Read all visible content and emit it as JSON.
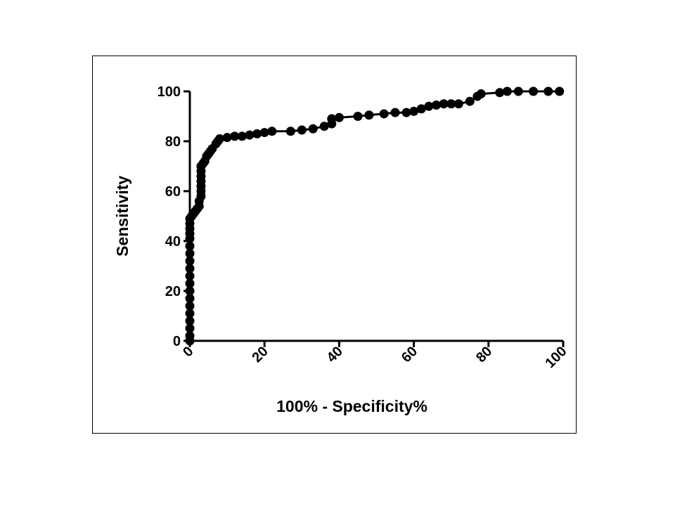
{
  "chart_data": {
    "type": "line",
    "xlabel": "100%  - Specificity%",
    "ylabel": "Sensitivity",
    "xlim": [
      0,
      100
    ],
    "ylim": [
      0,
      100
    ],
    "x_ticks": [
      0,
      20,
      40,
      60,
      80,
      100
    ],
    "y_ticks": [
      0,
      20,
      40,
      60,
      80,
      100
    ],
    "grid": false,
    "marker": "filled-circle",
    "line_color": "#000000",
    "series": [
      {
        "points": [
          [
            0,
            0
          ],
          [
            0,
            2
          ],
          [
            0,
            5
          ],
          [
            0,
            8
          ],
          [
            0,
            11
          ],
          [
            0,
            14
          ],
          [
            0,
            17
          ],
          [
            0,
            20
          ],
          [
            0,
            23
          ],
          [
            0,
            26
          ],
          [
            0,
            29
          ],
          [
            0,
            32
          ],
          [
            0,
            35
          ],
          [
            0,
            38
          ],
          [
            0,
            41
          ],
          [
            0,
            43
          ],
          [
            0,
            45
          ],
          [
            0,
            47
          ],
          [
            0,
            49
          ],
          [
            0.5,
            50
          ],
          [
            1,
            51
          ],
          [
            1.5,
            52
          ],
          [
            2,
            53
          ],
          [
            2.5,
            54
          ],
          [
            2.5,
            56
          ],
          [
            3,
            58
          ],
          [
            3,
            60
          ],
          [
            3,
            62
          ],
          [
            3,
            64
          ],
          [
            3,
            66
          ],
          [
            3,
            68
          ],
          [
            3,
            70
          ],
          [
            3.5,
            71
          ],
          [
            4,
            72
          ],
          [
            4.5,
            74
          ],
          [
            5,
            75
          ],
          [
            5.5,
            76
          ],
          [
            6,
            77
          ],
          [
            7,
            79
          ],
          [
            7.5,
            80
          ],
          [
            8,
            81
          ],
          [
            10,
            81.5
          ],
          [
            12,
            82
          ],
          [
            14,
            82
          ],
          [
            16,
            82.5
          ],
          [
            18,
            83
          ],
          [
            20,
            83.5
          ],
          [
            22,
            84
          ],
          [
            27,
            84
          ],
          [
            30,
            84.5
          ],
          [
            33,
            85
          ],
          [
            36,
            86
          ],
          [
            38,
            87
          ],
          [
            38,
            89
          ],
          [
            40,
            89.5
          ],
          [
            45,
            90
          ],
          [
            48,
            90.5
          ],
          [
            52,
            91
          ],
          [
            55,
            91.5
          ],
          [
            58,
            91.5
          ],
          [
            60,
            92
          ],
          [
            62,
            93
          ],
          [
            64,
            94
          ],
          [
            66,
            94.5
          ],
          [
            68,
            95
          ],
          [
            70,
            95
          ],
          [
            72,
            95
          ],
          [
            75,
            96
          ],
          [
            77,
            98
          ],
          [
            78,
            99
          ],
          [
            83,
            99.5
          ],
          [
            85,
            100
          ],
          [
            88,
            100
          ],
          [
            92,
            100
          ],
          [
            96,
            100
          ],
          [
            99,
            100
          ]
        ]
      }
    ]
  }
}
